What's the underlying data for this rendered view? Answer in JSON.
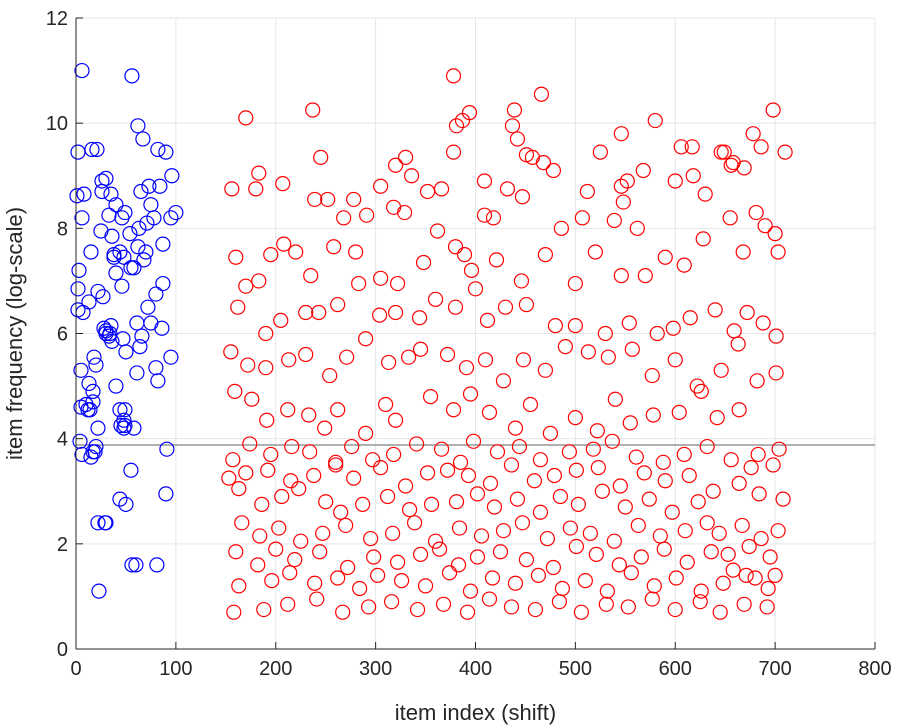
{
  "chart_data": {
    "type": "scatter",
    "title": "",
    "xlabel": "item index (shift)",
    "ylabel": "item frequency (log-scale)",
    "xlim": [
      0,
      800
    ],
    "ylim": [
      0,
      12
    ],
    "xticks": [
      0,
      100,
      200,
      300,
      400,
      500,
      600,
      700,
      800
    ],
    "yticks": [
      0,
      2,
      4,
      6,
      8,
      10,
      12
    ],
    "grid": true,
    "reference_line": {
      "y": 3.88,
      "color": "#808080"
    },
    "series": [
      {
        "name": "blue",
        "color": "#0000ff",
        "x": [
          6,
          2,
          1,
          8,
          16,
          21,
          26,
          30,
          35,
          40,
          46,
          56,
          6,
          15,
          3,
          2,
          7,
          25,
          2,
          30,
          50,
          58,
          62,
          70,
          80,
          87,
          100,
          95,
          13,
          26,
          33,
          36,
          44,
          49,
          54,
          63,
          71,
          78,
          84,
          33,
          75,
          38,
          82,
          96,
          5,
          13,
          18,
          22,
          30,
          34,
          62,
          67,
          20,
          27,
          38,
          46,
          64,
          72,
          87,
          90,
          6,
          17,
          20,
          61,
          44,
          48,
          10,
          17,
          15,
          19,
          4,
          49,
          55,
          58,
          45,
          29,
          50,
          44,
          81,
          90,
          12,
          17,
          22,
          5,
          48,
          56,
          91,
          28,
          35,
          40,
          49,
          23,
          60,
          82,
          36,
          65,
          73,
          80,
          14,
          66,
          40,
          47,
          48,
          30,
          61,
          75,
          86,
          95,
          22,
          55,
          68
        ],
        "y": [
          11.0,
          9.45,
          8.62,
          8.65,
          9.5,
          9.5,
          8.9,
          8.95,
          8.65,
          8.45,
          8.2,
          10.9,
          8.2,
          7.55,
          7.2,
          6.45,
          6.4,
          7.95,
          6.85,
          6.0,
          5.65,
          7.25,
          7.65,
          7.55,
          6.75,
          6.95,
          8.3,
          8.2,
          6.6,
          8.7,
          8.25,
          7.85,
          7.55,
          8.3,
          7.9,
          8.0,
          8.1,
          8.2,
          8.8,
          5.95,
          8.45,
          7.45,
          9.5,
          9.0,
          5.3,
          5.05,
          5.55,
          6.8,
          6.05,
          6.0,
          9.95,
          9.7,
          5.4,
          6.7,
          7.5,
          6.9,
          5.75,
          6.5,
          7.7,
          9.45,
          3.7,
          3.75,
          3.85,
          5.25,
          4.55,
          4.35,
          4.65,
          4.9,
          3.65,
          3.75,
          3.95,
          4.55,
          3.4,
          4.2,
          4.25,
          2.4,
          2.75,
          2.85,
          1.6,
          2.95,
          4.55,
          4.7,
          4.2,
          4.6,
          4.2,
          1.6,
          3.8,
          6.1,
          6.15,
          5.0,
          4.25,
          1.1,
          1.6,
          5.1,
          5.85,
          8.7,
          8.8,
          5.35,
          4.55,
          5.95,
          7.15,
          5.9,
          7.45,
          2.4,
          6.2,
          6.2,
          6.1,
          5.55,
          2.4,
          7.25,
          7.4
        ]
      },
      {
        "name": "red",
        "color": "#ff0000",
        "x": [
          378,
          237,
          170,
          466,
          394,
          387,
          381,
          439,
          437,
          442,
          457,
          525,
          546,
          580,
          606,
          617,
          646,
          658,
          678,
          686,
          698,
          710,
          330,
          320,
          378,
          409,
          432,
          451,
          468,
          478,
          507,
          546,
          552,
          568,
          618,
          649,
          656,
          669,
          681,
          703,
          156,
          180,
          183,
          207,
          239,
          245,
          252,
          268,
          278,
          291,
          305,
          318,
          329,
          336,
          352,
          366,
          389,
          409,
          418,
          447,
          486,
          512,
          539,
          548,
          562,
          600,
          630,
          655,
          690,
          160,
          170,
          183,
          195,
          208,
          220,
          235,
          258,
          280,
          305,
          322,
          348,
          362,
          380,
          396,
          421,
          446,
          470,
          500,
          520,
          546,
          570,
          590,
          609,
          628,
          668,
          700,
          162,
          190,
          205,
          230,
          243,
          262,
          283,
          304,
          320,
          344,
          360,
          380,
          400,
          412,
          430,
          451,
          480,
          500,
          530,
          554,
          582,
          598,
          615,
          640,
          659,
          672,
          688,
          701,
          155,
          172,
          190,
          213,
          230,
          254,
          271,
          290,
          313,
          333,
          345,
          372,
          391,
          410,
          428,
          448,
          470,
          490,
          513,
          533,
          557,
          577,
          600,
          622,
          646,
          663,
          682,
          701,
          159,
          176,
          191,
          212,
          233,
          249,
          262,
          290,
          310,
          320,
          355,
          378,
          395,
          414,
          440,
          455,
          475,
          500,
          522,
          540,
          555,
          578,
          604,
          626,
          642,
          664,
          683,
          704,
          157,
          174,
          195,
          216,
          234,
          260,
          276,
          297,
          318,
          341,
          366,
          385,
          398,
          422,
          444,
          465,
          494,
          518,
          537,
          561,
          588,
          609,
          632,
          656,
          676,
          698,
          153,
          170,
          192,
          215,
          238,
          260,
          278,
          305,
          330,
          352,
          372,
          393,
          415,
          436,
          459,
          479,
          501,
          523,
          545,
          569,
          590,
          614,
          638,
          664,
          684,
          708,
          163,
          186,
          206,
          223,
          250,
          265,
          287,
          312,
          334,
          356,
          381,
          402,
          419,
          442,
          465,
          485,
          503,
          527,
          550,
          574,
          597,
          623,
          644,
          667,
          686,
          703,
          166,
          184,
          203,
          225,
          247,
          270,
          295,
          317,
          339,
          360,
          384,
          406,
          428,
          447,
          472,
          495,
          515,
          539,
          563,
          585,
          610,
          632,
          653,
          674,
          695,
          160,
          182,
          200,
          219,
          244,
          272,
          298,
          322,
          345,
          364,
          383,
          402,
          425,
          451,
          478,
          501,
          521,
          544,
          566,
          589,
          612,
          636,
          658,
          680,
          700,
          163,
          196,
          214,
          239,
          262,
          284,
          302,
          326,
          350,
          374,
          395,
          417,
          440,
          463,
          487,
          510,
          532,
          556,
          579,
          601,
          626,
          648,
          671,
          693,
          158,
          188,
          212,
          241,
          267,
          293,
          316,
          342,
          368,
          392,
          414,
          436,
          460,
          484,
          506,
          531,
          553,
          577,
          600,
          625,
          645,
          669,
          692
        ],
        "y": [
          10.9,
          10.25,
          10.1,
          10.55,
          10.2,
          10.05,
          9.95,
          10.25,
          9.95,
          9.7,
          9.35,
          9.45,
          9.8,
          10.05,
          9.55,
          9.55,
          9.45,
          9.25,
          9.8,
          9.55,
          10.25,
          9.45,
          9.35,
          9.2,
          9.45,
          8.9,
          8.75,
          9.4,
          9.25,
          9.1,
          8.2,
          8.8,
          8.9,
          9.1,
          9.0,
          9.45,
          9.2,
          9.15,
          8.3,
          7.55,
          8.75,
          8.75,
          9.05,
          8.85,
          8.55,
          9.35,
          8.55,
          8.2,
          8.55,
          8.25,
          8.8,
          8.4,
          8.3,
          9.0,
          8.7,
          8.75,
          7.5,
          8.25,
          8.2,
          8.6,
          8.0,
          8.7,
          8.15,
          8.5,
          8.0,
          8.9,
          8.65,
          8.2,
          8.05,
          7.45,
          6.9,
          7.0,
          7.5,
          7.7,
          7.55,
          7.1,
          7.65,
          7.55,
          7.05,
          6.95,
          7.35,
          7.95,
          7.65,
          7.2,
          7.4,
          7.0,
          7.5,
          6.95,
          7.55,
          7.1,
          7.1,
          7.45,
          7.3,
          7.8,
          7.55,
          7.9,
          6.5,
          6.0,
          6.25,
          6.4,
          6.4,
          6.55,
          6.95,
          6.35,
          6.4,
          6.3,
          6.65,
          6.5,
          6.85,
          6.25,
          6.5,
          6.55,
          6.15,
          6.15,
          6.0,
          6.2,
          6.0,
          6.1,
          6.3,
          6.45,
          6.05,
          6.4,
          6.2,
          5.95,
          5.65,
          5.4,
          5.35,
          5.5,
          5.6,
          5.2,
          5.55,
          5.9,
          5.45,
          5.55,
          5.7,
          5.6,
          5.35,
          5.5,
          5.1,
          5.5,
          5.3,
          5.75,
          5.65,
          5.55,
          5.7,
          5.2,
          5.5,
          5.0,
          5.3,
          5.8,
          5.1,
          5.25,
          4.9,
          4.75,
          4.35,
          4.55,
          4.45,
          4.2,
          4.55,
          4.1,
          4.65,
          4.35,
          4.8,
          4.55,
          4.85,
          4.5,
          4.2,
          4.65,
          4.1,
          4.4,
          4.15,
          4.75,
          4.3,
          4.45,
          4.5,
          4.9,
          4.4,
          4.55,
          3.7,
          3.8,
          3.6,
          3.9,
          3.7,
          3.85,
          3.75,
          3.55,
          3.85,
          3.6,
          3.7,
          3.9,
          3.8,
          3.55,
          3.95,
          3.75,
          3.85,
          3.6,
          3.75,
          3.8,
          3.95,
          3.65,
          3.55,
          3.7,
          3.85,
          3.6,
          3.45,
          3.5,
          3.25,
          3.35,
          3.4,
          3.2,
          3.3,
          3.5,
          3.25,
          3.45,
          3.1,
          3.35,
          3.4,
          3.3,
          3.15,
          3.5,
          3.2,
          3.3,
          3.4,
          3.45,
          3.1,
          3.35,
          3.2,
          3.3,
          3.0,
          3.15,
          2.95,
          2.85,
          3.05,
          2.75,
          2.9,
          3.05,
          2.8,
          2.6,
          2.75,
          2.9,
          2.65,
          2.75,
          2.8,
          2.95,
          2.7,
          2.85,
          2.6,
          2.9,
          2.75,
          3.0,
          2.7,
          2.85,
          2.6,
          2.8,
          2.2,
          2.35,
          2.1,
          2.25,
          2.4,
          2.15,
          2.3,
          2.05,
          2.2,
          2.35,
          2.1,
          2.2,
          2.4,
          2.05,
          2.3,
          2.15,
          2.25,
          2.4,
          2.1,
          2.3,
          2.2,
          2.05,
          2.35,
          2.15,
          2.25,
          2.4,
          1.8,
          1.95,
          1.75,
          1.85,
          1.6,
          1.9,
          1.7,
          1.85,
          1.55,
          1.75,
          1.65,
          1.8,
          1.9,
          1.6,
          1.75,
          1.85,
          1.7,
          1.55,
          1.95,
          1.8,
          1.6,
          1.75,
          1.9,
          1.65,
          1.85,
          1.5,
          1.35,
          1.4,
          1.2,
          1.3,
          1.45,
          1.25,
          1.35,
          1.15,
          1.4,
          1.3,
          1.2,
          1.45,
          1.1,
          1.35,
          1.25,
          1.4,
          1.15,
          1.3,
          1.1,
          1.45,
          1.2,
          1.35,
          1.1,
          1.25,
          1.4,
          1.15,
          0.7,
          0.75,
          0.85,
          0.95,
          0.7,
          0.8,
          0.9,
          0.75,
          0.85,
          0.7,
          0.95,
          0.8,
          0.75,
          0.9,
          0.7,
          0.85,
          0.8,
          0.95,
          0.75,
          0.9,
          0.7,
          0.85,
          0.8
        ]
      }
    ]
  }
}
